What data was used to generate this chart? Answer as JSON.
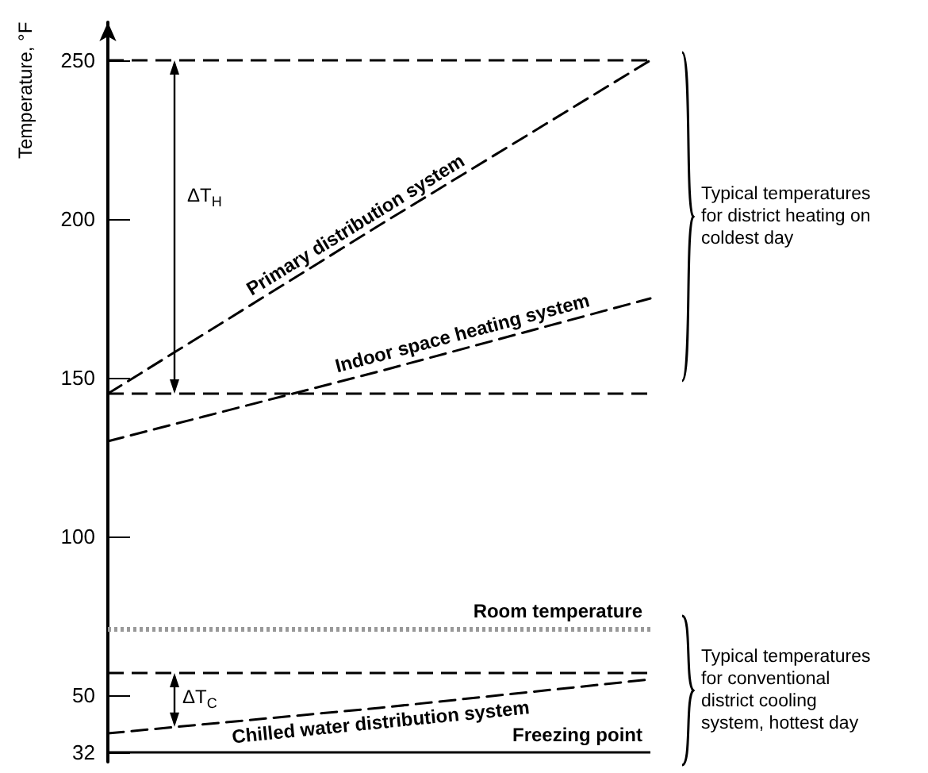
{
  "chart_data": {
    "type": "line",
    "ylabel": "Temperature, °F",
    "categories": [
      null,
      null,
      null
    ],
    "series": [
      {
        "name": "Primary distribution system",
        "color": "#000000",
        "values": [
          145,
          198,
          250
        ],
        "line_style": "dashed"
      },
      {
        "name": "Indoor space heating system",
        "color": "#000000",
        "values": [
          130,
          152,
          175
        ],
        "line_style": "dashed"
      },
      {
        "name": "Chilled water distribution system",
        "color": "#000000",
        "values": [
          38,
          46,
          55
        ],
        "line_style": "dashed"
      }
    ],
    "ref_lines": [
      {
        "axis": "y",
        "value": 250,
        "label": null,
        "color": "#000000",
        "line_style": "dashed"
      },
      {
        "axis": "y",
        "value": 145,
        "label": null,
        "color": "#000000",
        "line_style": "dashed"
      },
      {
        "axis": "y",
        "value": 57,
        "label": null,
        "color": "#000000",
        "line_style": "dashed"
      },
      {
        "axis": "y",
        "value": 71,
        "label": "Room temperature",
        "color": "#999999",
        "line_style": "dotted"
      },
      {
        "axis": "y",
        "value": 32,
        "label": "Freezing point",
        "color": "#000000",
        "line_style": "solid"
      }
    ],
    "annotations": [
      "ΔT$_{H}$",
      "ΔT$_{C}$",
      "Typical temperatures\nfor district heating on\ncoldest day",
      "Typical temperatures\nfor conventional\ndistrict cooling\nsystem, hottest day"
    ],
    "ylim": [
      29,
      262
    ],
    "yticks": [
      32,
      50,
      100,
      150,
      200,
      250
    ],
    "grid": false,
    "legend": false,
    "marker": "none",
    "tick_labels": "y"
  }
}
